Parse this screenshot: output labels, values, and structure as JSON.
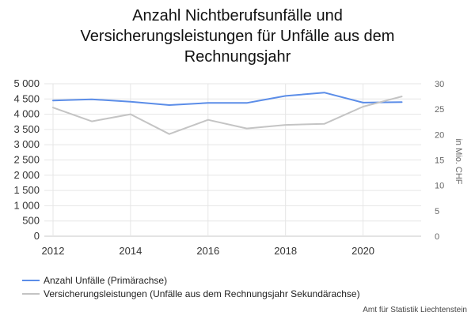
{
  "chart_data": {
    "type": "line",
    "title_lines": [
      "Anzahl Nichtberufsunfälle und",
      "Versicherungsleistungen für Unfälle aus dem",
      "Rechnungsjahr"
    ],
    "x": [
      2012,
      2013,
      2014,
      2015,
      2016,
      2017,
      2018,
      2019,
      2020,
      2021
    ],
    "x_ticks": [
      2012,
      2014,
      2016,
      2018,
      2020
    ],
    "x_tick_labels": [
      "2012",
      "2014",
      "2016",
      "2018",
      "2020"
    ],
    "xlim": [
      2012,
      2021.5
    ],
    "y_left": {
      "lim": [
        0,
        5000
      ],
      "ticks": [
        0,
        500,
        1000,
        1500,
        2000,
        2500,
        3000,
        3500,
        4000,
        4500,
        5000
      ],
      "tick_labels": [
        "0",
        "500",
        "1 000",
        "1 500",
        "2 000",
        "2 500",
        "3 000",
        "3 500",
        "4 000",
        "4 500",
        "5 000"
      ]
    },
    "y_right": {
      "lim": [
        0,
        30
      ],
      "ticks": [
        0,
        5,
        10,
        15,
        20,
        25,
        30
      ],
      "tick_labels": [
        "0",
        "5",
        "10",
        "15",
        "20",
        "25",
        "30"
      ],
      "label": "in Mio. CHF"
    },
    "grid": true,
    "legend_position": "bottom-left",
    "series": [
      {
        "name": "Anzahl Unfälle (Primärachse)",
        "axis": "left",
        "color": "#5b8de8",
        "values": [
          4450,
          4490,
          4410,
          4300,
          4370,
          4370,
          4600,
          4710,
          4380,
          4400
        ]
      },
      {
        "name": "Versicherungsleistungen (Unfälle aus dem Rechnungsjahr Sekundärachse)",
        "axis": "right",
        "color": "#c4c4c4",
        "values": [
          25.3,
          22.6,
          24.0,
          20.1,
          22.9,
          21.2,
          21.9,
          22.1,
          25.5,
          27.5
        ]
      }
    ]
  },
  "credit": "Amt für Statistik Liechtenstein"
}
